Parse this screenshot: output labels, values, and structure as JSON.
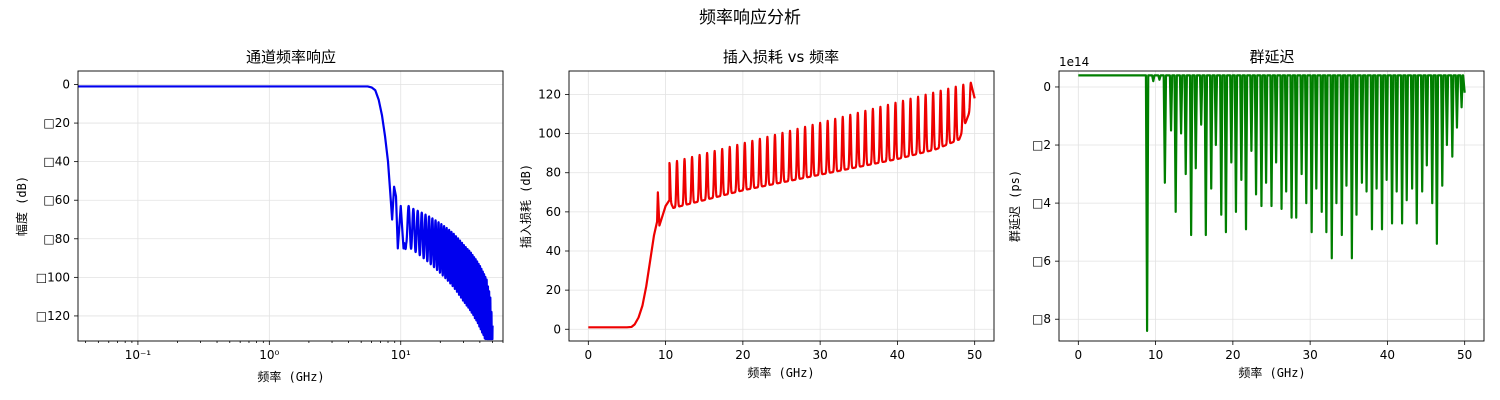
{
  "figure": {
    "suptitle": "频率响应分析"
  },
  "chart_data": [
    {
      "type": "line",
      "title": "通道频率响应",
      "xlabel": "频率 (GHz)",
      "ylabel": "幅度 (dB)",
      "xscale": "log",
      "xlim": [
        0.035,
        60
      ],
      "ylim": [
        -133,
        7
      ],
      "grid": true,
      "xticks": [
        0.1,
        1,
        10
      ],
      "xtick_labels": [
        "10⁻¹",
        "10⁰",
        "10¹"
      ],
      "yticks": [
        0,
        -20,
        -40,
        -60,
        -80,
        -100,
        -120
      ],
      "ytick_labels": [
        "0",
        "□20",
        "□40",
        "□60",
        "□80",
        "□100",
        "□120"
      ],
      "series": [
        {
          "color": "#0000ee",
          "x": [
            0.035,
            0.1,
            1,
            3,
            5,
            5.6,
            6,
            6.4,
            6.8,
            7.2,
            7.6,
            8.0,
            8.3,
            8.6,
            8.9,
            9.2,
            9.5,
            10.0,
            10.5,
            11,
            12,
            14,
            17,
            20,
            25,
            30,
            35,
            40,
            45,
            48,
            50
          ],
          "y": [
            -1,
            -1,
            -1,
            -1,
            -1,
            -1,
            -1.5,
            -3,
            -8,
            -16,
            -27,
            -40,
            -55,
            -70,
            -53,
            -58,
            -85,
            -63,
            -85,
            -62,
            -64,
            -66,
            -69,
            -72,
            -77,
            -83,
            -88,
            -94,
            -101,
            -110,
            -125
          ],
          "osc": {
            "from": 10.5,
            "to": 50,
            "cycles": 40,
            "lower_gap": [
              20,
              34
            ]
          }
        }
      ]
    },
    {
      "type": "line",
      "title": "插入损耗 vs 频率",
      "xlabel": "频率 (GHz)",
      "ylabel": "插入损耗 (dB)",
      "xlim": [
        -2.5,
        52.5
      ],
      "ylim": [
        -6,
        132
      ],
      "grid": true,
      "xticks": [
        0,
        10,
        20,
        30,
        40,
        50
      ],
      "xtick_labels": [
        "0",
        "10",
        "20",
        "30",
        "40",
        "50"
      ],
      "yticks": [
        0,
        20,
        40,
        60,
        80,
        100,
        120
      ],
      "ytick_labels": [
        "0",
        "20",
        "40",
        "60",
        "80",
        "100",
        "120"
      ],
      "series": [
        {
          "color": "#ee0000",
          "x": [
            0,
            5,
            5.6,
            6,
            6.5,
            7,
            7.5,
            8,
            8.5,
            8.9,
            9.0,
            9.2,
            9.6,
            10.0,
            10.5,
            11,
            15,
            20,
            25,
            30,
            35,
            40,
            45,
            48,
            50
          ],
          "y": [
            1,
            1,
            1.2,
            2.5,
            6,
            12,
            22,
            35,
            48,
            55,
            70,
            53,
            58,
            63,
            66,
            62,
            66,
            71,
            75,
            79,
            83,
            87,
            92,
            97,
            118
          ],
          "peak": {
            "from": 10.5,
            "to": 49.5,
            "cycles": 40,
            "start": 85,
            "end": 126
          }
        }
      ]
    },
    {
      "type": "line",
      "title": "群延迟",
      "xlabel": "频率 (GHz)",
      "ylabel": "群延迟 (ps)",
      "offset_label": "1e14",
      "xlim": [
        -2.5,
        52.5
      ],
      "ylim": [
        -8.75,
        0.55
      ],
      "grid": true,
      "xticks": [
        0,
        10,
        20,
        30,
        40,
        50
      ],
      "xtick_labels": [
        "0",
        "10",
        "20",
        "30",
        "40",
        "50"
      ],
      "yticks": [
        0,
        -2,
        -4,
        -6,
        -8
      ],
      "ytick_labels": [
        "0",
        "□2",
        "□4",
        "□6",
        "□8"
      ],
      "series": [
        {
          "color": "#007f00",
          "baseline": 0.4,
          "x": [
            0,
            8.8
          ],
          "y": [
            0.4,
            0.4
          ],
          "spikes": [
            [
              8.9,
              -8.4
            ],
            [
              9.7,
              0.2
            ],
            [
              10.5,
              0.25
            ],
            [
              11.2,
              -3.3
            ],
            [
              12.0,
              -1.5
            ],
            [
              12.6,
              -4.3
            ],
            [
              13.3,
              -1.6
            ],
            [
              13.9,
              -3.0
            ],
            [
              14.6,
              -5.1
            ],
            [
              15.2,
              -2.8
            ],
            [
              15.9,
              -1.3
            ],
            [
              16.5,
              -5.1
            ],
            [
              17.2,
              -3.5
            ],
            [
              17.8,
              -2.0
            ],
            [
              18.5,
              -4.4
            ],
            [
              19.1,
              -5.0
            ],
            [
              19.8,
              -2.6
            ],
            [
              20.4,
              -4.3
            ],
            [
              21.1,
              -3.2
            ],
            [
              21.7,
              -4.9
            ],
            [
              22.4,
              -2.2
            ],
            [
              23.0,
              -3.7
            ],
            [
              23.7,
              -4.1
            ],
            [
              24.3,
              -3.3
            ],
            [
              25.0,
              -4.1
            ],
            [
              25.6,
              -2.6
            ],
            [
              26.3,
              -4.2
            ],
            [
              26.9,
              -3.6
            ],
            [
              27.6,
              -4.5
            ],
            [
              28.2,
              -4.5
            ],
            [
              28.9,
              -3.0
            ],
            [
              29.5,
              -4.0
            ],
            [
              30.2,
              -5.0
            ],
            [
              30.8,
              -3.5
            ],
            [
              31.5,
              -4.3
            ],
            [
              32.1,
              -5.0
            ],
            [
              32.8,
              -5.9
            ],
            [
              33.4,
              -4.0
            ],
            [
              34.1,
              -5.1
            ],
            [
              34.7,
              -3.4
            ],
            [
              35.4,
              -5.9
            ],
            [
              36.0,
              -4.4
            ],
            [
              36.7,
              -3.3
            ],
            [
              37.3,
              -3.6
            ],
            [
              38.0,
              -4.9
            ],
            [
              38.6,
              -3.5
            ],
            [
              39.3,
              -4.9
            ],
            [
              39.9,
              -3.2
            ],
            [
              40.6,
              -4.7
            ],
            [
              41.2,
              -3.6
            ],
            [
              41.9,
              -4.7
            ],
            [
              42.5,
              -3.9
            ],
            [
              43.2,
              -3.5
            ],
            [
              43.8,
              -4.7
            ],
            [
              44.5,
              -3.6
            ],
            [
              45.1,
              -2.7
            ],
            [
              45.8,
              -4.0
            ],
            [
              46.4,
              -5.4
            ],
            [
              47.1,
              -3.4
            ],
            [
              47.7,
              -2.0
            ],
            [
              48.4,
              -2.4
            ],
            [
              49.0,
              -1.4
            ],
            [
              49.6,
              -0.7
            ]
          ]
        }
      ]
    }
  ]
}
